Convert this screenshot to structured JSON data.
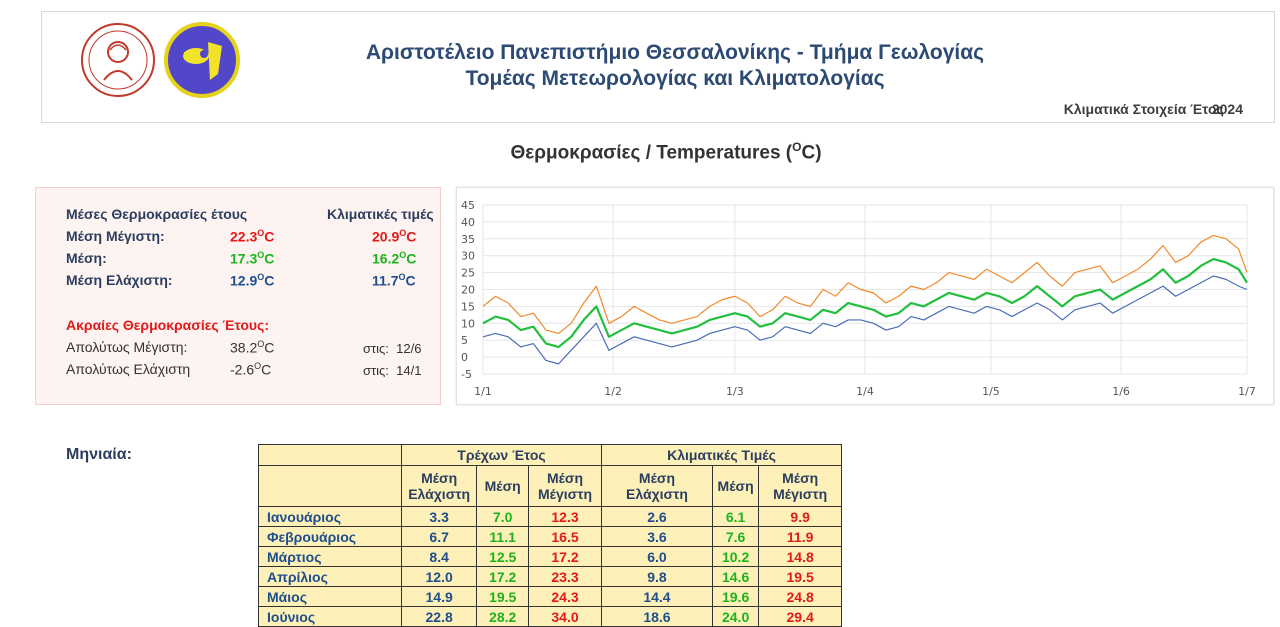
{
  "header": {
    "title_line1": "Αριστοτέλειο Πανεπιστήμιο Θεσσαλονίκης - Τμήμα Γεωλογίας",
    "title_line2": "Τομέας Μετεωρολογίας και Κλιματολογίας",
    "subtitle": "Κλιματικά Στοιχεία Έτος",
    "subtitle_year": "2024",
    "logo_left": "university-seal",
    "logo_right": "department-logo"
  },
  "section_title": "Θερμοκρασίες / Temperatures (",
  "section_title_unit": "O",
  "section_title_end": "C)",
  "stats": {
    "heading": "Μέσες Θερμοκρασίες έτους",
    "clim_heading": "Κλιματικές τιμές",
    "rows": [
      {
        "label": "Μέση Μέγιστη:",
        "value": "22.3",
        "clim": "20.9",
        "color": "#e31a1a"
      },
      {
        "label": "Μέση:",
        "value": "17.3",
        "clim": "16.2",
        "color": "#1db31d"
      },
      {
        "label": "Μέση Ελάχιστη:",
        "value": "12.9",
        "clim": "11.7",
        "color": "#1f4e8c"
      }
    ],
    "unit_sup": "O",
    "unit": "C",
    "extremes_heading": "Ακραίες Θερμοκρασίες Έτους:",
    "extremes": [
      {
        "label": "Απολύτως Μέγιστη:",
        "value": "38.2",
        "on_label": "στις:",
        "date": "12/6"
      },
      {
        "label": "Απολύτως Ελάχιστη",
        "value": "-2.6",
        "on_label": "στις:",
        "date": "14/1"
      }
    ]
  },
  "chart_data": {
    "type": "line",
    "x_ticks": [
      "1/1",
      "1/2",
      "1/3",
      "1/4",
      "1/5",
      "1/6",
      "1/7"
    ],
    "y_ticks": [
      45,
      40,
      35,
      30,
      25,
      20,
      15,
      10,
      5,
      0,
      -5
    ],
    "ylim": [
      -5,
      45
    ],
    "grid": true,
    "x_days": [
      1,
      4,
      7,
      10,
      13,
      16,
      19,
      22,
      25,
      28,
      31,
      34,
      37,
      40,
      43,
      46,
      49,
      52,
      55,
      58,
      61,
      64,
      67,
      70,
      73,
      76,
      79,
      82,
      85,
      88,
      91,
      94,
      97,
      100,
      103,
      106,
      109,
      112,
      115,
      118,
      121,
      124,
      127,
      130,
      133,
      136,
      139,
      142,
      145,
      148,
      151,
      154,
      157,
      160,
      163,
      166,
      169,
      172,
      175,
      178,
      181,
      183
    ],
    "series": [
      {
        "color": "#f0892b",
        "values": [
          15,
          18,
          16,
          12,
          13,
          8,
          7,
          10,
          16,
          21,
          10,
          12,
          15,
          13,
          11,
          10,
          11,
          12,
          15,
          17,
          18,
          16,
          12,
          14,
          18,
          16,
          15,
          20,
          18,
          22,
          20,
          19,
          16,
          18,
          21,
          20,
          22,
          25,
          24,
          23,
          26,
          24,
          22,
          25,
          28,
          24,
          21,
          25,
          26,
          27,
          22,
          24,
          26,
          29,
          33,
          28,
          30,
          34,
          36,
          35,
          32,
          25
        ]
      },
      {
        "color": "#22bf3e",
        "values": [
          10,
          12,
          11,
          8,
          9,
          4,
          3,
          6,
          11,
          15,
          6,
          8,
          10,
          9,
          8,
          7,
          8,
          9,
          11,
          12,
          13,
          12,
          9,
          10,
          13,
          12,
          11,
          14,
          13,
          16,
          15,
          14,
          12,
          13,
          16,
          15,
          17,
          19,
          18,
          17,
          19,
          18,
          16,
          18,
          21,
          18,
          15,
          18,
          19,
          20,
          17,
          19,
          21,
          23,
          26,
          22,
          24,
          27,
          29,
          28,
          26,
          22
        ]
      },
      {
        "color": "#4a6cb8",
        "values": [
          6,
          7,
          6,
          3,
          4,
          -1,
          -2,
          2,
          6,
          10,
          2,
          4,
          6,
          5,
          4,
          3,
          4,
          5,
          7,
          8,
          9,
          8,
          5,
          6,
          9,
          8,
          7,
          10,
          9,
          11,
          11,
          10,
          8,
          9,
          12,
          11,
          13,
          15,
          14,
          13,
          15,
          14,
          12,
          14,
          16,
          14,
          11,
          14,
          15,
          16,
          13,
          15,
          17,
          19,
          21,
          18,
          20,
          22,
          24,
          23,
          21,
          20
        ]
      }
    ]
  },
  "monthly": {
    "label": "Μηνιαία:",
    "current_header": "Τρέχων Έτος",
    "clim_header": "Κλιματικές Τιμές",
    "col_min": "Μέση Ελάχιστη",
    "col_min_l1": "Μέση",
    "col_min_l2": "Ελάχιστη",
    "col_mean": "Μέση",
    "col_max_l1": "Μέση",
    "col_max_l2": "Μέγιστη",
    "rows": [
      {
        "month": "Ιανουάριος",
        "cmin": "3.3",
        "cmean": "7.0",
        "cmax": "12.3",
        "kmin": "2.6",
        "kmean": "6.1",
        "kmax": "9.9"
      },
      {
        "month": "Φεβρουάριος",
        "cmin": "6.7",
        "cmean": "11.1",
        "cmax": "16.5",
        "kmin": "3.6",
        "kmean": "7.6",
        "kmax": "11.9"
      },
      {
        "month": "Μάρτιος",
        "cmin": "8.4",
        "cmean": "12.5",
        "cmax": "17.2",
        "kmin": "6.0",
        "kmean": "10.2",
        "kmax": "14.8"
      },
      {
        "month": "Απρίλιος",
        "cmin": "12.0",
        "cmean": "17.2",
        "cmax": "23.3",
        "kmin": "9.8",
        "kmean": "14.6",
        "kmax": "19.5"
      },
      {
        "month": "Μάιος",
        "cmin": "14.9",
        "cmean": "19.5",
        "cmax": "24.3",
        "kmin": "14.4",
        "kmean": "19.6",
        "kmax": "24.8"
      },
      {
        "month": "Ιούνιος",
        "cmin": "22.8",
        "cmean": "28.2",
        "cmax": "34.0",
        "kmin": "18.6",
        "kmean": "24.0",
        "kmax": "29.4"
      }
    ]
  }
}
